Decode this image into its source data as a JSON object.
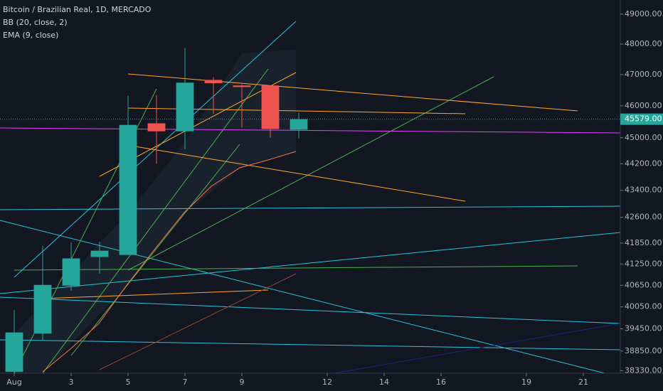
{
  "chart_data": {
    "type": "candlestick",
    "title": "Bitcoin / Brazilian Real, 1D, MERCADO",
    "indicators": [
      "BB (20, close, 2)",
      "EMA (9, close)"
    ],
    "x": [
      1,
      2,
      3,
      4,
      5,
      6,
      7,
      8,
      9,
      10,
      11
    ],
    "open": [
      38300,
      39320,
      40640,
      41450,
      41510,
      45450,
      45200,
      46830,
      46650,
      46650,
      45250
    ],
    "high": [
      39960,
      41770,
      41870,
      41890,
      46320,
      46340,
      47870,
      46920,
      46680,
      46660,
      45780
    ],
    "low": [
      38250,
      39120,
      40500,
      40980,
      41500,
      44200,
      44640,
      45750,
      45320,
      45000,
      44980
    ],
    "close": [
      39350,
      40660,
      41410,
      41630,
      45400,
      45200,
      46740,
      46720,
      46600,
      45270,
      45579
    ],
    "last_label": "45579.00",
    "up_color": "#26a69a",
    "down_color": "#ef5350",
    "log": true,
    "xlim": [
      0.5,
      22.3
    ],
    "xticks": [
      {
        "value": 1,
        "label": "Aug"
      },
      3,
      5,
      7,
      9,
      12,
      14,
      16,
      19,
      21
    ],
    "ylim": [
      38260,
      49480
    ],
    "yticks": [
      {
        "value": 49000,
        "label": "49000.00"
      },
      {
        "value": 48000,
        "label": "48000.00"
      },
      {
        "value": 47000,
        "label": "47000.00"
      },
      {
        "value": 46000,
        "label": "46000.00"
      },
      {
        "value": 45000,
        "label": "45000.00"
      },
      {
        "value": 44200,
        "label": "44200.00"
      },
      {
        "value": 43400,
        "label": "43400.00"
      },
      {
        "value": 42600,
        "label": "42600.00"
      },
      {
        "value": 41850,
        "label": "41850.00"
      },
      {
        "value": 41250,
        "label": "41250.00"
      },
      {
        "value": 40650,
        "label": "40650.00"
      },
      {
        "value": 40050,
        "label": "40050.00"
      },
      {
        "value": 39450,
        "label": "39450.00"
      },
      {
        "value": 38850,
        "label": "38850.00"
      },
      {
        "value": 38330,
        "label": "38330.00"
      }
    ]
  }
}
